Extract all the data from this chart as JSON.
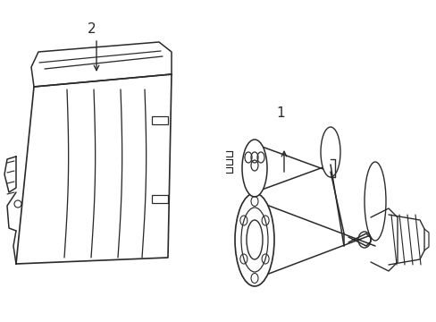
{
  "background_color": "#ffffff",
  "line_color": "#2a2a2a",
  "lw": 1.1,
  "label1": "1",
  "label2": "2",
  "fig_width": 4.89,
  "fig_height": 3.6,
  "dpi": 100
}
